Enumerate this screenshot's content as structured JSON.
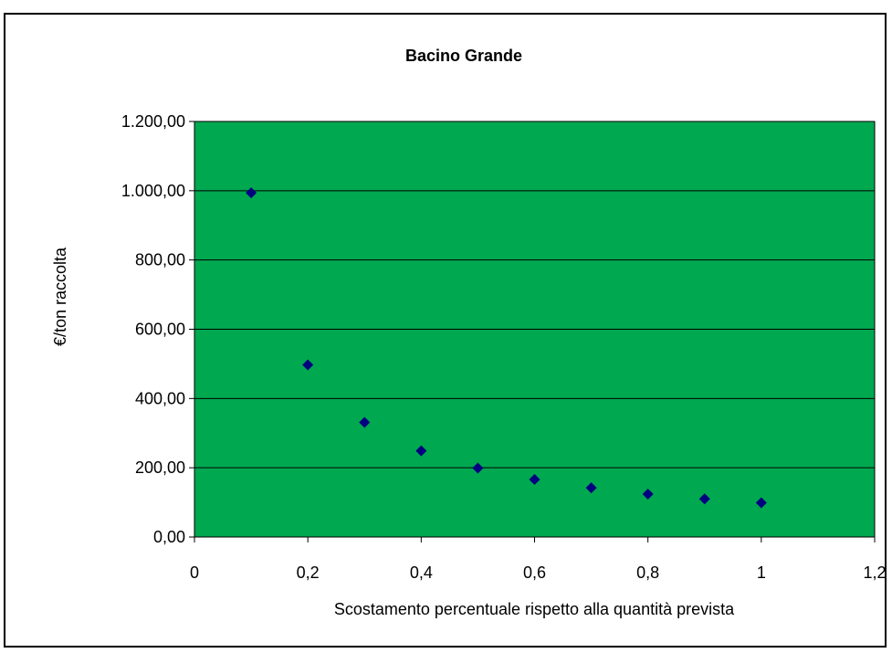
{
  "colors": {
    "plot_background": "#00A84F",
    "marker": "#000080",
    "gridline": "#000000",
    "border": "#000000"
  },
  "chart_data": {
    "type": "scatter",
    "title": "Bacino Grande",
    "xlabel": "Scostamento percentuale rispetto alla quantità prevista",
    "ylabel": "€/ton raccolta",
    "xlim": [
      0,
      1.2
    ],
    "ylim": [
      0,
      1200
    ],
    "grid": "horizontal major",
    "legend": "none",
    "marker": "diamond",
    "x_ticks": [
      "0",
      "0,2",
      "0,4",
      "0,6",
      "0,8",
      "1",
      "1,2"
    ],
    "x_tick_values": [
      0,
      0.2,
      0.4,
      0.6,
      0.8,
      1.0,
      1.2
    ],
    "y_ticks": [
      "0,00",
      "200,00",
      "400,00",
      "600,00",
      "800,00",
      "1.000,00",
      "1.200,00"
    ],
    "y_tick_values": [
      0,
      200,
      400,
      600,
      800,
      1000,
      1200
    ],
    "series": [
      {
        "x": [
          0.1,
          0.2,
          0.3,
          0.4,
          0.5,
          0.6,
          0.7,
          0.8,
          0.9,
          1.0
        ],
        "y": [
          994,
          497,
          331,
          249,
          199,
          166,
          142,
          124,
          110,
          99
        ]
      }
    ]
  }
}
